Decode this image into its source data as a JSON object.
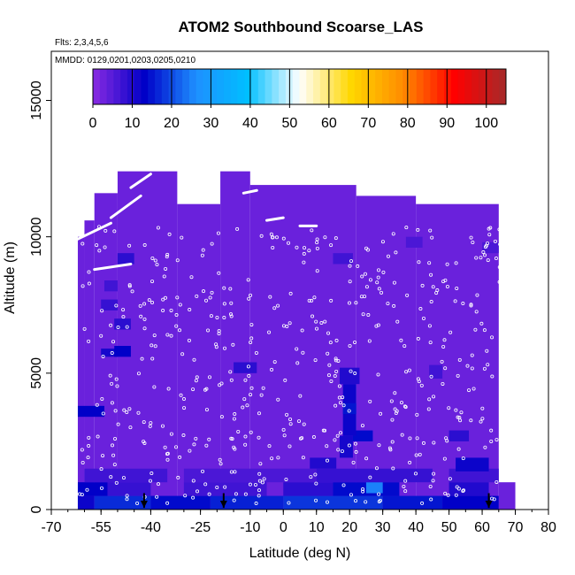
{
  "chart_data": {
    "type": "heatmap",
    "title": "ATOM2 Southbound Scoarse_LAS",
    "flights_label": "Flts: 2,3,4,5,6",
    "dates_label": "MMDD: 0129,0201,0203,0205,0210",
    "xlabel": "Latitude (deg N)",
    "ylabel": "Altitude (m)",
    "xlim": [
      -70,
      80
    ],
    "ylim": [
      0,
      16800
    ],
    "x_ticks": [
      -70,
      -55,
      -40,
      -25,
      -10,
      0,
      10,
      20,
      30,
      40,
      50,
      60,
      70,
      80
    ],
    "y_ticks": [
      0,
      5000,
      10000,
      15000
    ],
    "colorbar": {
      "range": [
        0,
        105
      ],
      "ticks": [
        0,
        10,
        20,
        30,
        40,
        50,
        60,
        70,
        80,
        90,
        100
      ],
      "colors": [
        "#8a2be2",
        "#0000c8",
        "#1e90ff",
        "#00bfff",
        "#ffffff",
        "#ffd700",
        "#ff8c00",
        "#ff0000",
        "#a52a2a"
      ]
    },
    "background_value": 3,
    "data_extent": [
      {
        "x0": -62,
        "x1": -60,
        "y0": 0,
        "y1": 10000
      },
      {
        "x0": -60,
        "x1": -57,
        "y0": 0,
        "y1": 10600
      },
      {
        "x0": -57,
        "x1": -50,
        "y0": 0,
        "y1": 11600
      },
      {
        "x0": -50,
        "x1": -32,
        "y0": 0,
        "y1": 12400
      },
      {
        "x0": -32,
        "x1": -19,
        "y0": 0,
        "y1": 11200
      },
      {
        "x0": -19,
        "x1": -10,
        "y0": 0,
        "y1": 12400
      },
      {
        "x0": -10,
        "x1": 22,
        "y0": 0,
        "y1": 11900
      },
      {
        "x0": 22,
        "x1": 40,
        "y0": 0,
        "y1": 11500
      },
      {
        "x0": 40,
        "x1": 65,
        "y0": 0,
        "y1": 11200
      },
      {
        "x0": 65,
        "x1": 70,
        "y0": 0,
        "y1": 1000
      }
    ],
    "cells": [
      {
        "x0": -62,
        "x1": -57,
        "y0": 0,
        "y1": 500,
        "value": 12
      },
      {
        "x0": -57,
        "x1": -40,
        "y0": 0,
        "y1": 500,
        "value": 17
      },
      {
        "x0": -40,
        "x1": -22,
        "y0": 0,
        "y1": 500,
        "value": 14
      },
      {
        "x0": -22,
        "x1": 0,
        "y0": 0,
        "y1": 500,
        "value": 16
      },
      {
        "x0": 0,
        "x1": 30,
        "y0": 0,
        "y1": 500,
        "value": 18
      },
      {
        "x0": 30,
        "x1": 48,
        "y0": 0,
        "y1": 500,
        "value": 15
      },
      {
        "x0": 48,
        "x1": 65,
        "y0": 0,
        "y1": 500,
        "value": 13
      },
      {
        "x0": -62,
        "x1": -53,
        "y0": 500,
        "y1": 1000,
        "value": 13
      },
      {
        "x0": -53,
        "x1": -40,
        "y0": 500,
        "y1": 1000,
        "value": 8
      },
      {
        "x0": -30,
        "x1": -5,
        "y0": 500,
        "y1": 1000,
        "value": 7
      },
      {
        "x0": 0,
        "x1": 15,
        "y0": 500,
        "y1": 1000,
        "value": 9
      },
      {
        "x0": 15,
        "x1": 35,
        "y0": 500,
        "y1": 1000,
        "value": 14
      },
      {
        "x0": 25,
        "x1": 30,
        "y0": 600,
        "y1": 1000,
        "value": 25
      },
      {
        "x0": 50,
        "x1": 62,
        "y0": 500,
        "y1": 1000,
        "value": 10
      },
      {
        "x0": -60,
        "x1": -35,
        "y0": 1000,
        "y1": 1500,
        "value": 7
      },
      {
        "x0": -30,
        "x1": 10,
        "y0": 1000,
        "y1": 1500,
        "value": 6
      },
      {
        "x0": 10,
        "x1": 45,
        "y0": 1000,
        "y1": 1500,
        "value": 8
      },
      {
        "x0": 50,
        "x1": 65,
        "y0": 1000,
        "y1": 1500,
        "value": 7
      },
      {
        "x0": 8,
        "x1": 16,
        "y0": 1500,
        "y1": 1900,
        "value": 10
      },
      {
        "x0": 52,
        "x1": 62,
        "y0": 1400,
        "y1": 1900,
        "value": 12
      },
      {
        "x0": 17,
        "x1": 21,
        "y0": 1900,
        "y1": 2700,
        "value": 11
      },
      {
        "x0": 21,
        "x1": 27,
        "y0": 2500,
        "y1": 2900,
        "value": 14
      },
      {
        "x0": 50,
        "x1": 56,
        "y0": 2500,
        "y1": 2900,
        "value": 9
      },
      {
        "x0": 18,
        "x1": 22,
        "y0": 2700,
        "y1": 4600,
        "value": 12
      },
      {
        "x0": 18,
        "x1": 22,
        "y0": 3500,
        "y1": 3900,
        "value": 15
      },
      {
        "x0": -62,
        "x1": -54,
        "y0": 3400,
        "y1": 3800,
        "value": 13
      },
      {
        "x0": -15,
        "x1": -8,
        "y0": 5000,
        "y1": 5400,
        "value": 9
      },
      {
        "x0": 17,
        "x1": 23,
        "y0": 4600,
        "y1": 5200,
        "value": 10
      },
      {
        "x0": 44,
        "x1": 48,
        "y0": 4800,
        "y1": 5300,
        "value": 7
      },
      {
        "x0": -55,
        "x1": -50,
        "y0": 5600,
        "y1": 5900,
        "value": 11
      },
      {
        "x0": -51,
        "x1": -46,
        "y0": 5600,
        "y1": 6000,
        "value": 13
      },
      {
        "x0": -51,
        "x1": -46,
        "y0": 6600,
        "y1": 7000,
        "value": 9
      },
      {
        "x0": -55,
        "x1": -50,
        "y0": 7300,
        "y1": 7700,
        "value": 8
      },
      {
        "x0": -54,
        "x1": -50,
        "y0": 8000,
        "y1": 8400,
        "value": 7
      },
      {
        "x0": -50,
        "x1": -45,
        "y0": 9000,
        "y1": 9400,
        "value": 9
      },
      {
        "x0": 15,
        "x1": 21,
        "y0": 9000,
        "y1": 9400,
        "value": 7
      },
      {
        "x0": 37,
        "x1": 42,
        "y0": 9600,
        "y1": 10000,
        "value": 6
      },
      {
        "x0": 60,
        "x1": 65,
        "y0": 9400,
        "y1": 9800,
        "value": 6
      }
    ],
    "arrows_x": [
      -42,
      -18,
      62
    ]
  }
}
